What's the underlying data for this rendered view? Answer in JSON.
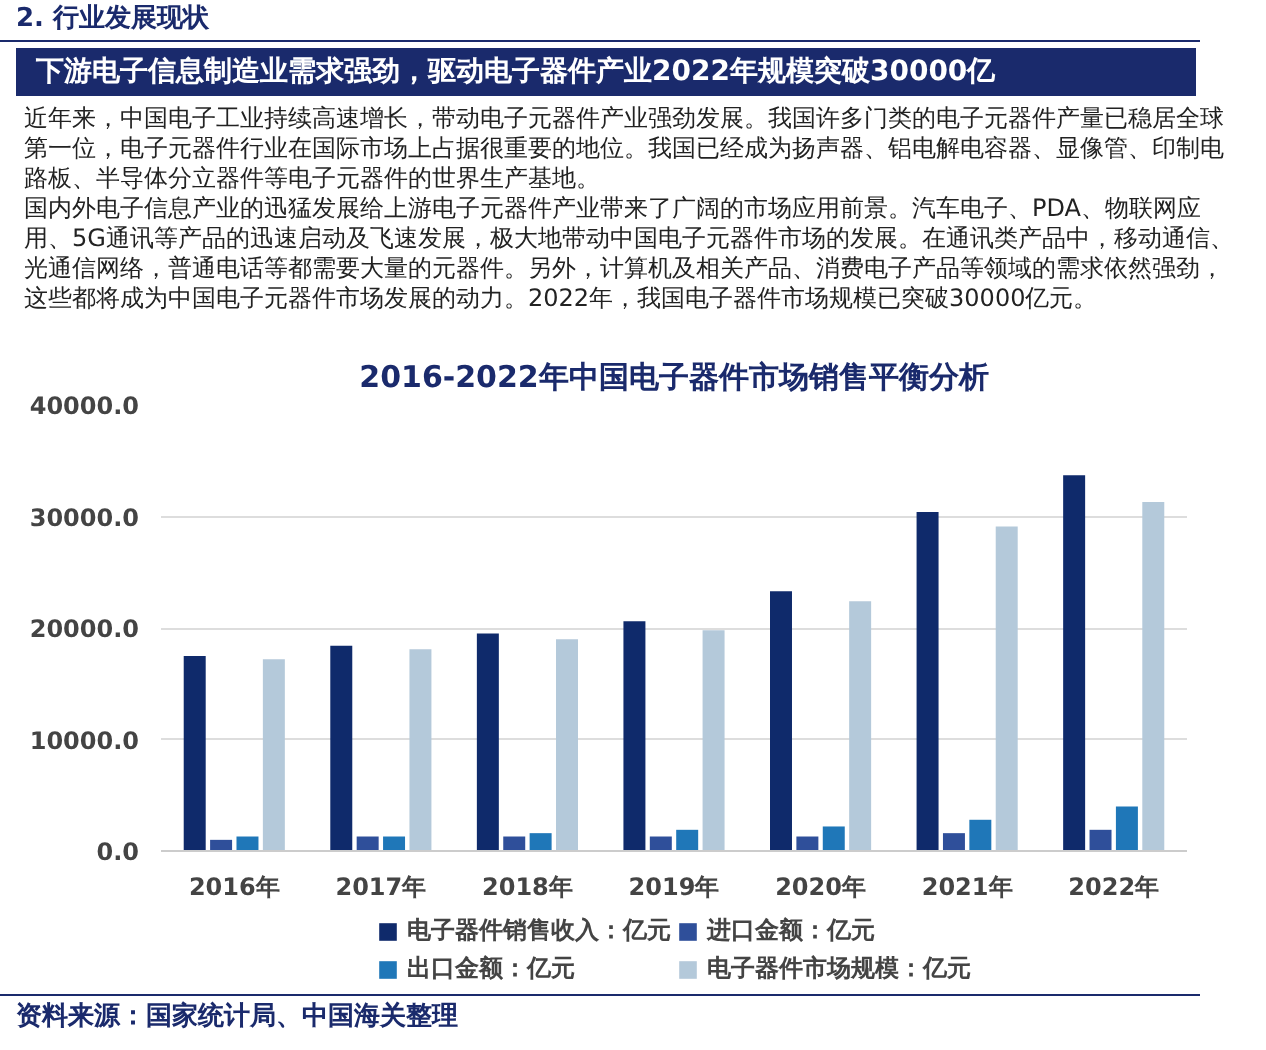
{
  "chart_data": {
    "type": "bar",
    "title": "2016-2022年中国电子器件市场销售平衡分析",
    "annotations": [
      "2. 行业发展现状",
      "下游电子信息制造业需求强劲，驱动电子器件产业2022年规模突破30000亿",
      "近年来，中国电子工业持续高速增长，带动电子元器件产业强劲发展。我国许多门类的电子元器件产量已稳居全球第一位，电子元器件行业在国际市场上占据很重要的地位。我国已经成为扬声器、铝电解电容器、显像管、印制电路板、半导体分立器件等电子元器件的世界生产基地。",
      "国内外电子信息产业的迅猛发展给上游电子元器件产业带来了广阔的市场应用前景。汽车电子、PDA、物联网应用、5G通讯等产品的迅速启动及飞速发展，极大地带动中国电子元器件市场的发展。在通讯类产品中，移动通信、光通信网络，普通电话等都需要大量的元器件。另外，计算机及相关产品、消费电子产品等领域的需求依然强劲，这些都将成为中国电子元器件市场发展的动力。2022年，我国电子器件市场规模已突破30000亿元。",
      "资料来源：国家统计局、中国海关整理"
    ],
    "categories": [
      "2016年",
      "2017年",
      "2018年",
      "2019年",
      "2020年",
      "2021年",
      "2022年"
    ],
    "series": [
      {
        "name": "电子器件销售收入：亿元",
        "color": "#0f2a6b",
        "values": [
          17500,
          18400,
          19500,
          20600,
          23300,
          30400,
          33700
        ]
      },
      {
        "name": "进口金额：亿元",
        "color": "#2f4f9a",
        "values": [
          1000,
          1300,
          1300,
          1300,
          1300,
          1600,
          1900
        ]
      },
      {
        "name": "出口金额：亿元",
        "color": "#1f77b8",
        "values": [
          1300,
          1300,
          1600,
          1900,
          2200,
          2800,
          4000
        ]
      },
      {
        "name": "电子器件市场规模：亿元",
        "color": "#b4c9da",
        "values": [
          17200,
          18100,
          19000,
          19800,
          22400,
          29100,
          31300
        ]
      }
    ],
    "ylim": [
      0,
      40000
    ],
    "yticks": [
      {
        "value": 0,
        "label": "0.0"
      },
      {
        "value": 10000,
        "label": "10000.0"
      },
      {
        "value": 20000,
        "label": "20000.0"
      },
      {
        "value": 30000,
        "label": "30000.0"
      },
      {
        "value": 40000,
        "label": "40000.0"
      }
    ],
    "grid": "y",
    "legend": "bottom"
  }
}
